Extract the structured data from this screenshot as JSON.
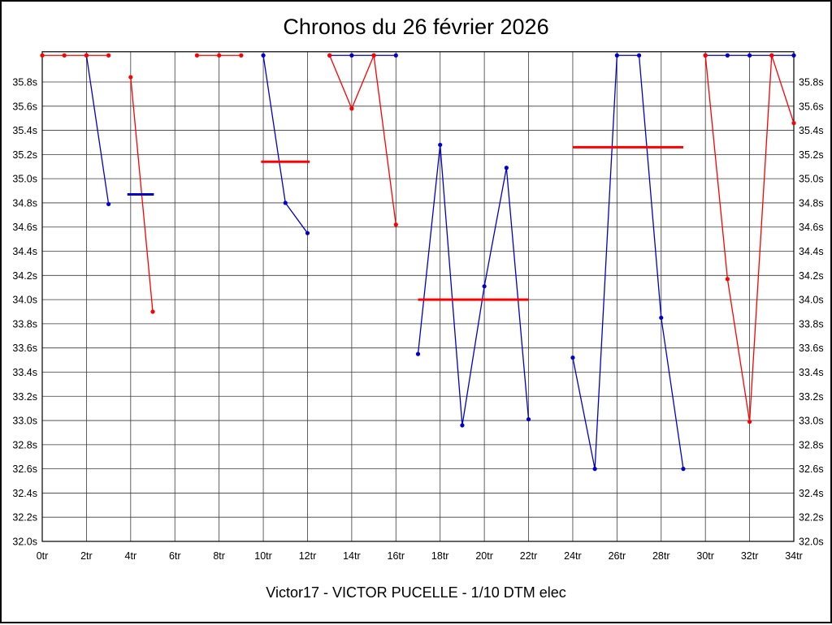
{
  "page": {
    "title": "Chronos du 26 février 2026",
    "footer": "Victor17 - VICTOR PUCELLE - 1/10 DTM elec"
  },
  "chart_data": {
    "type": "line",
    "title": "Chronos du 26 février 2026",
    "subtitle": "Victor17 - VICTOR PUCELLE - 1/10 DTM elec",
    "x_unit": "tr (tours / laps)",
    "y_unit": "seconds",
    "xlim": [
      0,
      34
    ],
    "ylim": [
      32.0,
      36.05
    ],
    "cap_value": 36.02,
    "cap_note": "null lap values are times above the visible scale, clipped flat at the top of the plot",
    "grid": true,
    "x_tick_values": [
      0,
      2,
      4,
      6,
      8,
      10,
      12,
      14,
      16,
      18,
      20,
      22,
      24,
      26,
      28,
      30,
      32,
      34
    ],
    "x_tick_labels": [
      "0tr",
      "2tr",
      "4tr",
      "6tr",
      "8tr",
      "10tr",
      "12tr",
      "14tr",
      "16tr",
      "18tr",
      "20tr",
      "22tr",
      "24tr",
      "26tr",
      "28tr",
      "30tr",
      "32tr",
      "34tr"
    ],
    "y_tick_values": [
      32.0,
      32.2,
      32.4,
      32.6,
      32.8,
      33.0,
      33.2,
      33.4,
      33.6,
      33.8,
      34.0,
      34.2,
      34.4,
      34.6,
      34.8,
      35.0,
      35.2,
      35.4,
      35.6,
      35.8
    ],
    "y_tick_labels": [
      "32.0s",
      "32.2s",
      "32.4s",
      "32.6s",
      "32.8s",
      "33.0s",
      "33.2s",
      "33.4s",
      "33.6s",
      "33.8s",
      "34.0s",
      "34.2s",
      "34.4s",
      "34.6s",
      "34.8s",
      "35.0s",
      "35.2s",
      "35.4s",
      "35.6s",
      "35.8s"
    ],
    "series": [
      {
        "name": "blue",
        "color": "#0000cd",
        "segments": [
          [
            [
              2,
              null
            ],
            [
              3,
              34.79
            ]
          ],
          [
            [
              10,
              null
            ],
            [
              11,
              34.8
            ],
            [
              12,
              34.55
            ]
          ],
          [
            [
              13,
              null
            ],
            [
              14,
              null
            ],
            [
              15,
              null
            ],
            [
              16,
              null
            ]
          ],
          [
            [
              17,
              33.55
            ],
            [
              18,
              35.28
            ],
            [
              19,
              32.96
            ],
            [
              20,
              34.11
            ],
            [
              21,
              35.09
            ],
            [
              22,
              33.01
            ]
          ],
          [
            [
              24,
              33.52
            ],
            [
              25,
              32.6
            ],
            [
              26,
              null
            ],
            [
              27,
              null
            ],
            [
              28,
              33.85
            ],
            [
              29,
              32.6
            ]
          ],
          [
            [
              30,
              null
            ],
            [
              31,
              null
            ],
            [
              32,
              null
            ],
            [
              33,
              null
            ],
            [
              34,
              null
            ]
          ]
        ]
      },
      {
        "name": "red",
        "color": "#ff0000",
        "segments": [
          [
            [
              0,
              null
            ],
            [
              1,
              null
            ],
            [
              2,
              null
            ],
            [
              3,
              null
            ]
          ],
          [
            [
              4,
              35.84
            ],
            [
              5,
              33.9
            ]
          ],
          [
            [
              7,
              null
            ],
            [
              8,
              null
            ],
            [
              9,
              null
            ]
          ],
          [
            [
              13,
              null
            ],
            [
              14,
              35.58
            ],
            [
              15,
              null
            ],
            [
              16,
              34.62
            ]
          ],
          [
            [
              30,
              null
            ],
            [
              31,
              34.17
            ],
            [
              32,
              32.99
            ],
            [
              33,
              null
            ],
            [
              34,
              35.46
            ]
          ]
        ]
      }
    ],
    "average_bars": [
      {
        "color": "#0000cd",
        "x1": 3.85,
        "x2": 5.05,
        "y": 34.87
      },
      {
        "color": "#ff0000",
        "x1": 9.9,
        "x2": 12.1,
        "y": 35.14
      },
      {
        "color": "#ff0000",
        "x1": 17.0,
        "x2": 22.0,
        "y": 34.0
      },
      {
        "color": "#ff0000",
        "x1": 24.0,
        "x2": 29.0,
        "y": 35.26
      }
    ]
  }
}
